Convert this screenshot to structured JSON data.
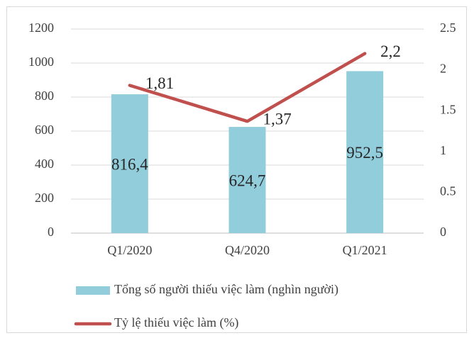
{
  "chart_data": {
    "type": "bar",
    "categories": [
      "Q1/2020",
      "Q4/2020",
      "Q1/2021"
    ],
    "series": [
      {
        "name": "Tổng số người thiếu việc làm (nghìn người)",
        "type": "bar",
        "color": "#92cddc",
        "values": [
          816.4,
          624.7,
          952.5
        ],
        "value_labels": [
          "816,4",
          "624,7",
          "952,5"
        ]
      },
      {
        "name": "Tỷ lệ thiếu việc làm (%)",
        "type": "line",
        "axis": "y2",
        "color": "#c0504d",
        "values": [
          1.81,
          1.37,
          2.2
        ],
        "value_labels": [
          "1,81",
          "1,37",
          "2,2"
        ]
      }
    ],
    "ylim": [
      0,
      1200
    ],
    "yticks": [
      0,
      200,
      400,
      600,
      800,
      1000,
      1200
    ],
    "y2lim": [
      0,
      2.5
    ],
    "y2ticks": [
      0,
      0.5,
      1,
      1.5,
      2,
      2.5
    ],
    "grid": true,
    "legend": "bottom"
  }
}
